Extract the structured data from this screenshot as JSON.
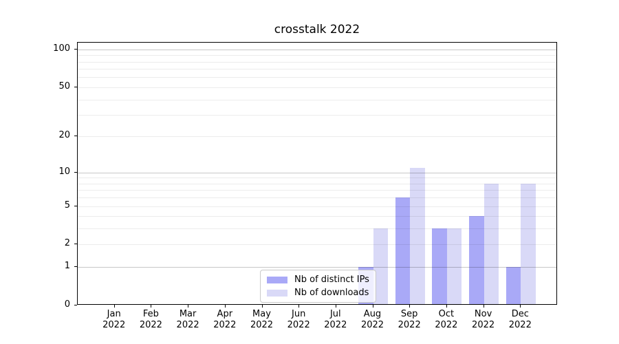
{
  "chart_data": {
    "type": "bar",
    "title": "crosstalk 2022",
    "xlabel": "",
    "ylabel": "",
    "yscale": "log1p",
    "ylim": [
      0,
      113
    ],
    "yticks": [
      0,
      1,
      2,
      5,
      10,
      20,
      50,
      100
    ],
    "grid": true,
    "legend_position": "lower center-left inside plot",
    "categories": [
      "Jan 2022",
      "Feb 2022",
      "Mar 2022",
      "Apr 2022",
      "May 2022",
      "Jun 2022",
      "Jul 2022",
      "Aug 2022",
      "Sep 2022",
      "Oct 2022",
      "Nov 2022",
      "Dec 2022"
    ],
    "series": [
      {
        "name": "Nb of distinct IPs",
        "color": "#a9a9f7",
        "values": [
          0,
          0,
          0,
          0,
          0,
          0,
          0,
          1,
          6,
          3,
          4,
          1
        ]
      },
      {
        "name": "Nb of downloads",
        "color": "#d9d9f7",
        "values": [
          0,
          0,
          0,
          0,
          0,
          0,
          0,
          3,
          11,
          3,
          8,
          8
        ]
      }
    ],
    "colors": {
      "major_gridline": "#c8c8c8",
      "minor_gridline": "#ebebeb",
      "axis": "#000000",
      "text": "#000000"
    }
  }
}
